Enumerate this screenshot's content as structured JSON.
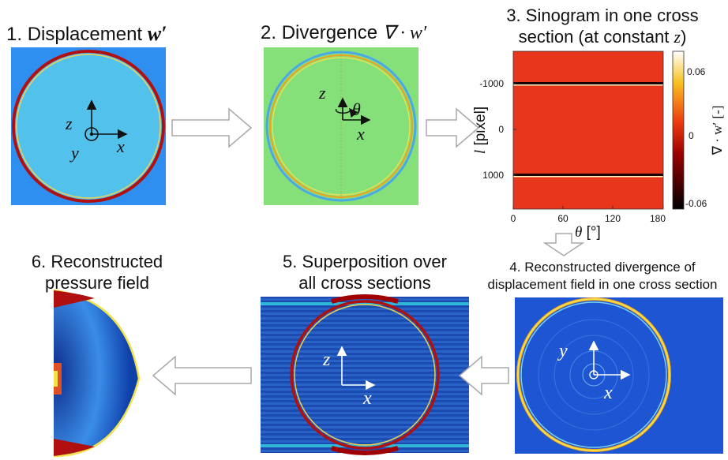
{
  "steps": [
    {
      "number": "1.",
      "title": "Displacement",
      "symbol": "w′"
    },
    {
      "number": "2.",
      "title": "Divergence",
      "symbol": "∇ · w′"
    },
    {
      "number": "3.",
      "title_line1": "Sinogram in one cross",
      "title_line2_prefix": "section (at constant ",
      "title_line2_var": "z",
      "title_line2_suffix": ")"
    },
    {
      "number": "4.",
      "title_line1": "Reconstructed divergence of",
      "title_line2": "displacement field in one cross section"
    },
    {
      "number": "5.",
      "title_line1": "Superposition over",
      "title_line2": "all cross sections"
    },
    {
      "number": "6.",
      "title_line1": "Reconstructed",
      "title_line2": "pressure field"
    }
  ],
  "axis_labels": {
    "x": "x",
    "y": "y",
    "z": "z",
    "theta": "θ"
  },
  "sinogram": {
    "xlabel_var": "θ",
    "xlabel_unit": " [°]",
    "ylabel_var": "l",
    "ylabel_unit": " [pixel]",
    "x_ticks": [
      "0",
      "60",
      "120",
      "180"
    ],
    "y_ticks": [
      "-1000",
      "0",
      "1000"
    ],
    "colorbar_ticks": [
      "0.06",
      "0",
      "-0.06"
    ],
    "colorbar_label": "∇ · w′ [-]",
    "colors": {
      "background": "#e8361c",
      "line_dark": "#1a0000",
      "line_light": "#fff7c0"
    }
  },
  "colors": {
    "panel1_bg": "#2f8ff0",
    "panel1_disk": "#52c2ec",
    "panel2_bg": "#86e07a",
    "panel4_bg": "#1d55d2",
    "ring_red": "#b01010",
    "ring_yellow": "#f2e14a",
    "arrow_outline": "#a8a8a8"
  }
}
